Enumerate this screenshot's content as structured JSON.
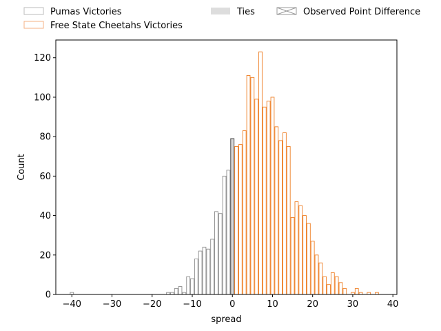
{
  "chart_data": {
    "type": "bar",
    "subtype": "histogram",
    "xlabel": "spread",
    "ylabel": "Count",
    "xlim": [
      -44,
      41
    ],
    "ylim": [
      0,
      129
    ],
    "bin_width": 1,
    "x_ticks": [
      -40,
      -30,
      -20,
      -10,
      0,
      10,
      20,
      30,
      40
    ],
    "x_tick_labels": [
      "−40",
      "−30",
      "−20",
      "−10",
      "0",
      "10",
      "20",
      "30",
      "40"
    ],
    "y_ticks": [
      0,
      20,
      40,
      60,
      80,
      100,
      120
    ],
    "y_tick_labels": [
      "0",
      "20",
      "40",
      "60",
      "80",
      "100",
      "120"
    ],
    "legend_position": "top, above plot",
    "legend": [
      {
        "label": "Pumas Victories",
        "style": "outline",
        "color": "#bbbbbb"
      },
      {
        "label": "Ties",
        "style": "filled",
        "color": "#dddddd"
      },
      {
        "label": "Observed Point Difference",
        "style": "hatched",
        "color": "#999999"
      },
      {
        "label": "Free State Cheetahs Victories",
        "style": "outline",
        "color": "#f4b183"
      }
    ],
    "series": [
      {
        "name": "Pumas Victories",
        "color": "#8c8c8c",
        "bins": [
          {
            "x": -40,
            "y": 1
          },
          {
            "x": -16,
            "y": 1
          },
          {
            "x": -15,
            "y": 1
          },
          {
            "x": -14,
            "y": 3
          },
          {
            "x": -13,
            "y": 4
          },
          {
            "x": -12,
            "y": 1
          },
          {
            "x": -11,
            "y": 9
          },
          {
            "x": -10,
            "y": 8
          },
          {
            "x": -9,
            "y": 18
          },
          {
            "x": -8,
            "y": 22
          },
          {
            "x": -7,
            "y": 24
          },
          {
            "x": -6,
            "y": 23
          },
          {
            "x": -5,
            "y": 28
          },
          {
            "x": -4,
            "y": 42
          },
          {
            "x": -3,
            "y": 41
          },
          {
            "x": -2,
            "y": 60
          },
          {
            "x": -1,
            "y": 63
          }
        ]
      },
      {
        "name": "Ties",
        "color": "#d9d9d9",
        "bins": [
          {
            "x": 0,
            "y": 79
          }
        ]
      },
      {
        "name": "Free State Cheetahs Victories",
        "color": "#ee7d22",
        "bins": [
          {
            "x": 1,
            "y": 75
          },
          {
            "x": 2,
            "y": 76
          },
          {
            "x": 3,
            "y": 83
          },
          {
            "x": 4,
            "y": 111
          },
          {
            "x": 5,
            "y": 110
          },
          {
            "x": 6,
            "y": 99
          },
          {
            "x": 7,
            "y": 123
          },
          {
            "x": 8,
            "y": 95
          },
          {
            "x": 9,
            "y": 98
          },
          {
            "x": 10,
            "y": 100
          },
          {
            "x": 11,
            "y": 85
          },
          {
            "x": 12,
            "y": 78
          },
          {
            "x": 13,
            "y": 82
          },
          {
            "x": 14,
            "y": 75
          },
          {
            "x": 15,
            "y": 39
          },
          {
            "x": 16,
            "y": 47
          },
          {
            "x": 17,
            "y": 45
          },
          {
            "x": 18,
            "y": 40
          },
          {
            "x": 19,
            "y": 36
          },
          {
            "x": 20,
            "y": 27
          },
          {
            "x": 21,
            "y": 20
          },
          {
            "x": 22,
            "y": 16
          },
          {
            "x": 23,
            "y": 9
          },
          {
            "x": 24,
            "y": 5
          },
          {
            "x": 25,
            "y": 11
          },
          {
            "x": 26,
            "y": 9
          },
          {
            "x": 27,
            "y": 6
          },
          {
            "x": 28,
            "y": 3
          },
          {
            "x": 30,
            "y": 1
          },
          {
            "x": 31,
            "y": 3
          },
          {
            "x": 32,
            "y": 1
          },
          {
            "x": 34,
            "y": 1
          },
          {
            "x": 36,
            "y": 1
          }
        ]
      }
    ]
  }
}
